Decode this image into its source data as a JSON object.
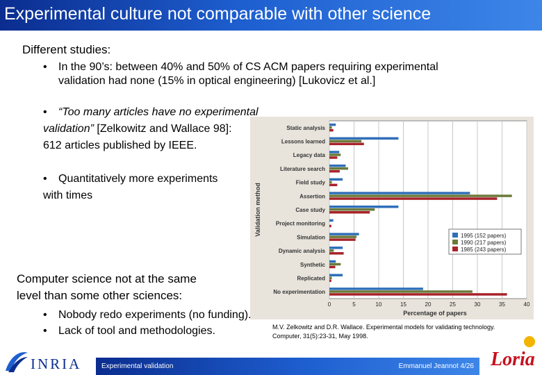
{
  "slide": {
    "title": "Experimental culture not comparable with other science",
    "heading1": "Different studies:",
    "b1_line1": "In the 90’s: between 40% and 50% of CS ACM papers requiring experimental",
    "b1_line2": "validation had none (15% in optical engineering) [Lukovicz et al.]",
    "b2_line1": "“Too many articles have no experimental",
    "b2_line2_italic": "validation”",
    "b2_line2_rest": " [Zelkowitz and Wallace 98]:",
    "b2_line3": "612 articles published by IEEE.",
    "b3_line1": "Quantitatively more experiments",
    "b3_line2": "with times",
    "heading2_line1": "Computer science not at the same",
    "heading2_line2": "level than some other sciences:",
    "b4": "Nobody redo experiments (no funding).",
    "b5": "Lack of tool and methodologies.",
    "bullet_char": "•",
    "reference_line1": "M.V. Zelkowitz and D.R. Wallace. Experimental models for validating technology.",
    "reference_line2": "Computer, 31(5):23-31, May 1998."
  },
  "footer": {
    "left": "Experimental validation",
    "right": "Emmanuel Jeannot   4/26"
  },
  "logos": {
    "inria": "INRIA",
    "loria": "Loria"
  },
  "colors": {
    "title_bar": "#1e5fd0",
    "series_1995": "#2f6fb8",
    "series_1990": "#6b7a3a",
    "series_1985": "#a8232a",
    "chart_bg": "#e8e4dc"
  },
  "chart_data": {
    "type": "bar",
    "orientation": "horizontal",
    "ylabel": "Validation method",
    "xlabel": "Percentage of papers",
    "xlim": [
      0,
      40
    ],
    "xticks": [
      "0",
      "5",
      "10",
      "15",
      "20",
      "25",
      "30",
      "35",
      "40"
    ],
    "grid": true,
    "legend_position": "right",
    "categories": [
      "Static analysis",
      "Lessons learned",
      "Legacy data",
      "Literature search",
      "Field study",
      "Assertion",
      "Case study",
      "Project monitoring",
      "Simulation",
      "Dynamic analysis",
      "Synthetic",
      "Replicated",
      "No experimentation"
    ],
    "series": [
      {
        "name": "1995 (152 papers)",
        "color": "#2f6fb8",
        "values": [
          1.3,
          14.0,
          2.0,
          3.3,
          2.7,
          28.5,
          14.0,
          0.8,
          6.0,
          2.7,
          1.3,
          2.7,
          19.0
        ]
      },
      {
        "name": "1990 (217 papers)",
        "color": "#6b7a3a",
        "values": [
          0.5,
          6.5,
          2.3,
          3.8,
          0.5,
          37.0,
          9.2,
          0.0,
          5.5,
          0.9,
          2.3,
          0.5,
          29.0
        ]
      },
      {
        "name": "1985 (243 papers)",
        "color": "#a8232a",
        "values": [
          0.8,
          7.0,
          1.6,
          2.1,
          1.6,
          34.0,
          8.2,
          0.4,
          5.3,
          2.9,
          1.2,
          0.4,
          36.0
        ]
      }
    ]
  }
}
